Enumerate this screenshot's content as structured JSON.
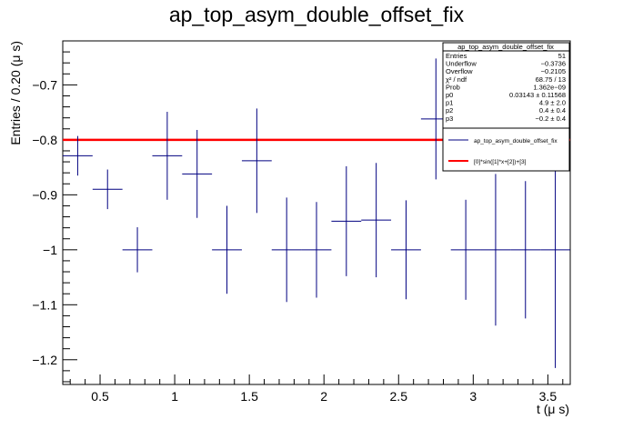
{
  "chart_data": {
    "type": "scatter",
    "title": "ap_top_asym_double_offset_fix",
    "xlabel": "t (μ s)",
    "ylabel": "Entries / 0.20 (μ s)",
    "xlim": [
      0.25,
      3.65
    ],
    "ylim": [
      -1.245,
      -0.62
    ],
    "xticks": [
      0.5,
      1,
      1.5,
      2,
      2.5,
      3,
      3.5
    ],
    "xtick_labels": [
      "0.5",
      "1",
      "1.5",
      "2",
      "2.5",
      "3",
      "3.5"
    ],
    "yticks": [
      -1.2,
      -1.1,
      -1,
      -0.9,
      -0.8,
      -0.7
    ],
    "ytick_labels": [
      "−1.2",
      "−1.1",
      "−1",
      "−0.9",
      "−0.8",
      "−0.7"
    ],
    "series": [
      {
        "name": "ap_top_asym_double_offset_fix",
        "color": "#000080",
        "points": [
          {
            "x": 0.35,
            "xerr": 0.1,
            "y": -0.829,
            "yerr": 0.036
          },
          {
            "x": 0.55,
            "xerr": 0.1,
            "y": -0.89,
            "yerr": 0.036
          },
          {
            "x": 0.75,
            "xerr": 0.1,
            "y": -1.0,
            "yerr": 0.041
          },
          {
            "x": 0.95,
            "xerr": 0.1,
            "y": -0.829,
            "yerr": 0.08
          },
          {
            "x": 1.15,
            "xerr": 0.1,
            "y": -0.862,
            "yerr": 0.08
          },
          {
            "x": 1.35,
            "xerr": 0.1,
            "y": -1.0,
            "yerr": 0.08
          },
          {
            "x": 1.55,
            "xerr": 0.1,
            "y": -0.838,
            "yerr": 0.095
          },
          {
            "x": 1.75,
            "xerr": 0.1,
            "y": -1.0,
            "yerr": 0.095
          },
          {
            "x": 1.95,
            "xerr": 0.1,
            "y": -1.0,
            "yerr": 0.087
          },
          {
            "x": 2.15,
            "xerr": 0.1,
            "y": -0.948,
            "yerr": 0.1
          },
          {
            "x": 2.35,
            "xerr": 0.1,
            "y": -0.946,
            "yerr": 0.104
          },
          {
            "x": 2.55,
            "xerr": 0.1,
            "y": -1.0,
            "yerr": 0.09
          },
          {
            "x": 2.75,
            "xerr": 0.1,
            "y": -0.762,
            "yerr": 0.11
          },
          {
            "x": 2.95,
            "xerr": 0.1,
            "y": -1.0,
            "yerr": 0.091
          },
          {
            "x": 3.15,
            "xerr": 0.1,
            "y": -1.0,
            "yerr": 0.138
          },
          {
            "x": 3.35,
            "xerr": 0.1,
            "y": -1.0,
            "yerr": 0.125
          },
          {
            "x": 3.55,
            "xerr": 0.1,
            "y": -1.0,
            "yerr": 0.215
          }
        ]
      },
      {
        "name": "[0]*sin([1]*x+[2])+[3]",
        "type": "line",
        "color": "#ff0000",
        "x": [
          0.25,
          3.65
        ],
        "y": [
          -0.8,
          -0.8
        ]
      }
    ],
    "stats_box": {
      "title": "ap_top_asym_double_offset_fix",
      "rows": [
        {
          "label": "Entries",
          "value": "51"
        },
        {
          "label": "Underflow",
          "value": "−0.3736"
        },
        {
          "label": "Overflow",
          "value": "−0.2105"
        },
        {
          "label": "χ² / ndf",
          "value": "68.75 / 13"
        },
        {
          "label": "Prob",
          "value": "1.362e−09"
        },
        {
          "label": "p0",
          "value": "0.03143 ± 0.11568"
        },
        {
          "label": "p1",
          "value": "4.9 ± 2.0"
        },
        {
          "label": "p2",
          "value": "0.4 ± 0.4"
        },
        {
          "label": "p3",
          "value": "−0.2 ± 0.4"
        }
      ]
    },
    "legend": {
      "position": "top-right",
      "entries": [
        {
          "label": "ap_top_asym_double_offset_fix",
          "color": "#000080"
        },
        {
          "label": "[0]*sin([1]*x+[2])+[3]",
          "color": "#ff0000"
        }
      ]
    }
  }
}
